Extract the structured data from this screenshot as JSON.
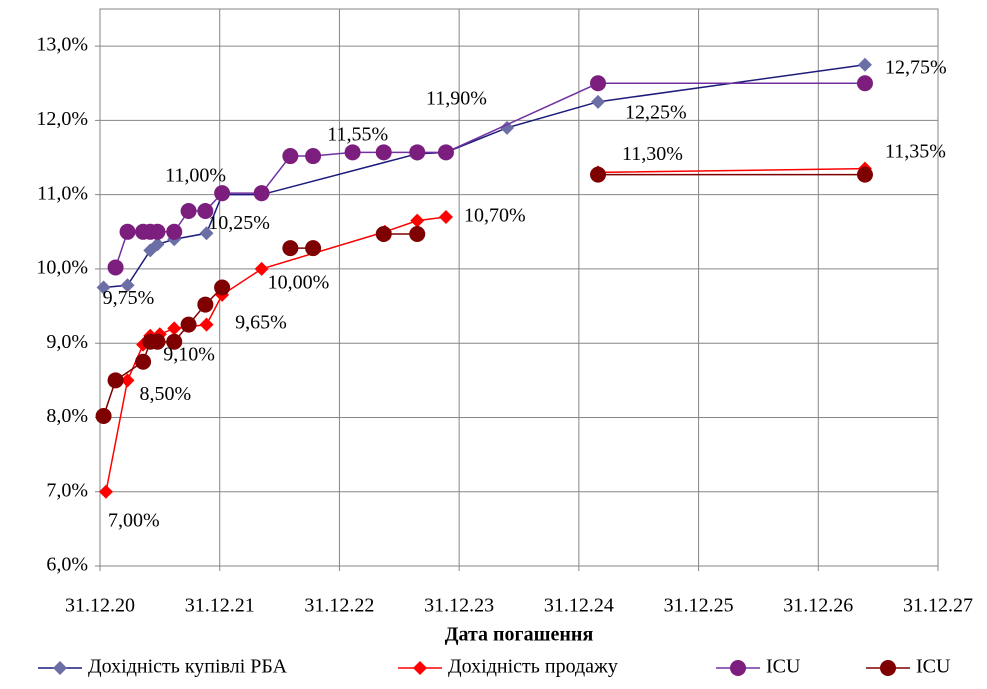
{
  "chart_data": {
    "type": "line",
    "x_label": "Дата погашення",
    "xlim": [
      2021,
      2028
    ],
    "xticks": [
      {
        "value": 2021,
        "label": "31.12.20"
      },
      {
        "value": 2022,
        "label": "31.12.21"
      },
      {
        "value": 2023,
        "label": "31.12.22"
      },
      {
        "value": 2024,
        "label": "31.12.23"
      },
      {
        "value": 2025,
        "label": "31.12.24"
      },
      {
        "value": 2026,
        "label": "31.12.25"
      },
      {
        "value": 2027,
        "label": "31.12.26"
      },
      {
        "value": 2028,
        "label": "31.12.27"
      }
    ],
    "ylim": [
      6,
      13.5
    ],
    "yticks": [
      {
        "value": 6,
        "label": "6,0%"
      },
      {
        "value": 7,
        "label": "7,0%"
      },
      {
        "value": 8,
        "label": "8,0%"
      },
      {
        "value": 9,
        "label": "9,0%"
      },
      {
        "value": 10,
        "label": "10,0%"
      },
      {
        "value": 11,
        "label": "11,0%"
      },
      {
        "value": 12,
        "label": "12,0%"
      },
      {
        "value": 13,
        "label": "13,0%"
      }
    ],
    "grid": true,
    "legend": "bottom",
    "series": [
      {
        "name": "Дохідність купівлі РБА",
        "color": "#1c1c7c",
        "marker_color": "#6b6fa6",
        "marker": "diamond",
        "x": [
          2021.03,
          2021.23,
          2021.42,
          2021.48,
          2021.62,
          2021.89,
          2022.02,
          2022.35,
          2023.65,
          2023.89,
          2024.4,
          2025.16,
          2027.39
        ],
        "values": [
          9.75,
          9.78,
          10.25,
          10.33,
          10.4,
          10.48,
          11.0,
          11.0,
          11.55,
          11.57,
          11.9,
          12.25,
          12.75
        ],
        "value_labels": [
          "9,75%",
          null,
          "10,25%",
          null,
          null,
          null,
          "11,00%",
          null,
          "11,55%",
          null,
          "11,90%",
          "12,25%",
          "12,75%"
        ]
      },
      {
        "name": "Дохідність продажу",
        "color": "#ff0000",
        "marker_color": "#ff0000",
        "marker": "diamond",
        "x": [
          2021.05,
          2021.23,
          2021.36,
          2021.42,
          2021.5,
          2021.62,
          2021.89,
          2022.02,
          2022.35,
          2023.38,
          2023.65,
          2023.89,
          null,
          2025.16,
          2027.39
        ],
        "values": [
          7.0,
          8.5,
          8.98,
          9.1,
          9.12,
          9.2,
          9.25,
          9.65,
          10.0,
          10.5,
          10.65,
          10.7,
          null,
          11.3,
          11.35
        ],
        "value_labels": [
          "7,00%",
          "8,50%",
          null,
          "9,10%",
          null,
          null,
          null,
          "9,65%",
          "10,00%",
          null,
          null,
          "10,70%",
          null,
          "11,30%",
          "11,35%"
        ]
      },
      {
        "name": "ICU",
        "color": "#7030a0",
        "marker_color": "#7b1e7e",
        "marker": "circle",
        "x": [
          2021.13,
          2021.23,
          2021.36,
          2021.42,
          2021.48,
          2021.62,
          2021.74,
          2021.88,
          2022.02,
          2022.35,
          2022.59,
          2022.78,
          2023.11,
          2023.37,
          2023.65,
          2023.89,
          2025.16,
          2027.39
        ],
        "values": [
          10.02,
          10.5,
          10.5,
          10.5,
          10.5,
          10.5,
          10.78,
          10.78,
          11.02,
          11.02,
          11.52,
          11.52,
          11.57,
          11.57,
          11.57,
          11.57,
          12.5,
          12.5
        ]
      },
      {
        "name": "ICU",
        "color": "#7f0000",
        "marker_color": "#7f0000",
        "marker": "circle",
        "x": [
          2021.03,
          2021.13,
          2021.36,
          2021.42,
          2021.48,
          2021.62,
          2021.74,
          2021.88,
          2022.02,
          null,
          2022.59,
          2022.78,
          null,
          2023.37,
          2023.65,
          null,
          2025.16,
          2027.39
        ],
        "values": [
          8.02,
          8.5,
          8.75,
          9.02,
          9.02,
          9.02,
          9.25,
          9.52,
          9.75,
          null,
          10.28,
          10.28,
          null,
          10.47,
          10.47,
          null,
          11.27,
          11.27
        ]
      }
    ]
  }
}
